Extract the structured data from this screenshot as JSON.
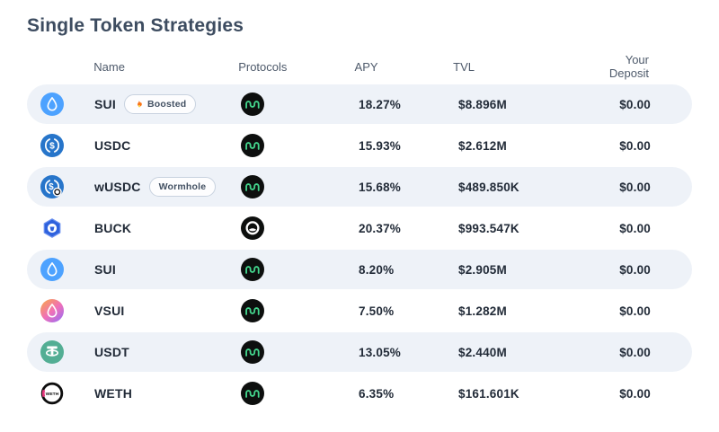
{
  "page": {
    "title": "Single Token Strategies"
  },
  "table": {
    "headers": {
      "name": "Name",
      "protocols": "Protocols",
      "apy": "APY",
      "tvl": "TVL",
      "deposit": "Your Deposit"
    },
    "rows": [
      {
        "token": "SUI",
        "icon": "sui-token-icon",
        "badge": "Boosted",
        "badge_icon": "flame-icon",
        "protocol_icon": "wave-protocol-icon",
        "apy": "18.27%",
        "tvl": "$8.896M",
        "deposit": "$0.00"
      },
      {
        "token": "USDC",
        "icon": "usdc-token-icon",
        "badge": "",
        "badge_icon": "",
        "protocol_icon": "wave-protocol-icon",
        "apy": "15.93%",
        "tvl": "$2.612M",
        "deposit": "$0.00"
      },
      {
        "token": "wUSDC",
        "icon": "wusdc-token-icon",
        "badge": "Wormhole",
        "badge_icon": "",
        "protocol_icon": "wave-protocol-icon",
        "apy": "15.68%",
        "tvl": "$489.850K",
        "deposit": "$0.00"
      },
      {
        "token": "BUCK",
        "icon": "buck-token-icon",
        "badge": "",
        "badge_icon": "",
        "protocol_icon": "bucket-protocol-icon",
        "apy": "20.37%",
        "tvl": "$993.547K",
        "deposit": "$0.00"
      },
      {
        "token": "SUI",
        "icon": "sui-token-icon",
        "badge": "",
        "badge_icon": "",
        "protocol_icon": "wave-protocol-icon",
        "apy": "8.20%",
        "tvl": "$2.905M",
        "deposit": "$0.00"
      },
      {
        "token": "VSUI",
        "icon": "vsui-token-icon",
        "badge": "",
        "badge_icon": "",
        "protocol_icon": "wave-protocol-icon",
        "apy": "7.50%",
        "tvl": "$1.282M",
        "deposit": "$0.00"
      },
      {
        "token": "USDT",
        "icon": "usdt-token-icon",
        "badge": "",
        "badge_icon": "",
        "protocol_icon": "wave-protocol-icon",
        "apy": "13.05%",
        "tvl": "$2.440M",
        "deposit": "$0.00"
      },
      {
        "token": "WETH",
        "icon": "weth-token-icon",
        "badge": "",
        "badge_icon": "",
        "protocol_icon": "wave-protocol-icon",
        "apy": "6.35%",
        "tvl": "$161.601K",
        "deposit": "$0.00"
      }
    ]
  },
  "colors": {
    "title_text": "#3d4c60",
    "header_text": "#4e5a6b",
    "cell_text": "#222b38",
    "row_alt_bg": "#eef2f8",
    "sui_blue": "#4da2ff",
    "usdc_blue": "#2775ca",
    "buck_blue": "#2f62dd",
    "usdt_teal": "#53ae94",
    "weth_pink": "#e5397d",
    "protocol_green": "#43d58c",
    "flame_orange": "#f97316"
  }
}
